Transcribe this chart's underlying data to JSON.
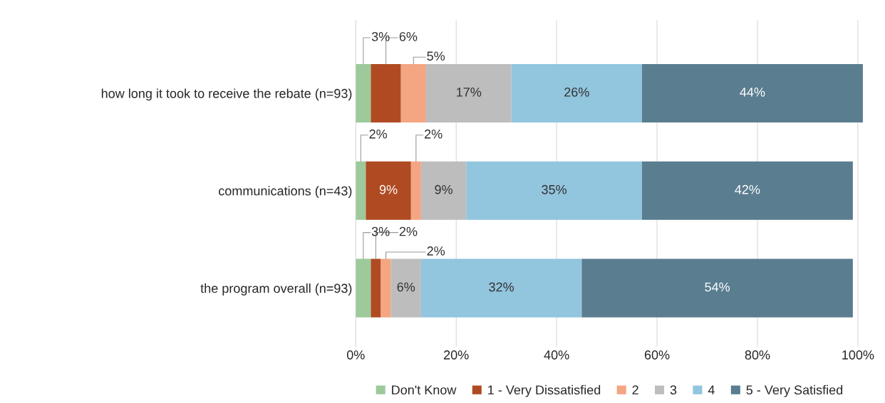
{
  "chart_data": {
    "type": "bar",
    "orientation": "horizontal",
    "stacked": true,
    "categories": [
      "how long it took to receive the rebate (n=93)",
      "communications (n=43)",
      "the program overall (n=93)"
    ],
    "series": [
      {
        "name": "Don't Know",
        "color": "#9dc99b",
        "values": [
          3,
          2,
          3
        ],
        "value_labels": [
          "3%",
          "2%",
          "3%"
        ]
      },
      {
        "name": "1 - Very Dissatisfied",
        "color": "#b04a22",
        "values": [
          6,
          9,
          2
        ],
        "value_labels": [
          "6%",
          "9%",
          "2%"
        ]
      },
      {
        "name": "2",
        "color": "#f4a582",
        "values": [
          5,
          2,
          2
        ],
        "value_labels": [
          "5%",
          "2%",
          "2%"
        ]
      },
      {
        "name": "3",
        "color": "#bdbdbd",
        "values": [
          17,
          9,
          6
        ],
        "value_labels": [
          "17%",
          "9%",
          "6%"
        ]
      },
      {
        "name": "4",
        "color": "#92c5de",
        "values": [
          26,
          35,
          32
        ],
        "value_labels": [
          "26%",
          "35%",
          "32%"
        ]
      },
      {
        "name": "5 - Very Satisfied",
        "color": "#5a7d90",
        "values": [
          44,
          42,
          54
        ],
        "value_labels": [
          "44%",
          "42%",
          "54%"
        ]
      }
    ],
    "xlim": [
      0,
      101
    ],
    "xticks": [
      {
        "value": 0,
        "label": "0%"
      },
      {
        "value": 20,
        "label": "20%"
      },
      {
        "value": 40,
        "label": "40%"
      },
      {
        "value": 60,
        "label": "60%"
      },
      {
        "value": 80,
        "label": "80%"
      },
      {
        "value": 100,
        "label": "100%"
      }
    ],
    "grid": "x",
    "legend": "bottom"
  }
}
